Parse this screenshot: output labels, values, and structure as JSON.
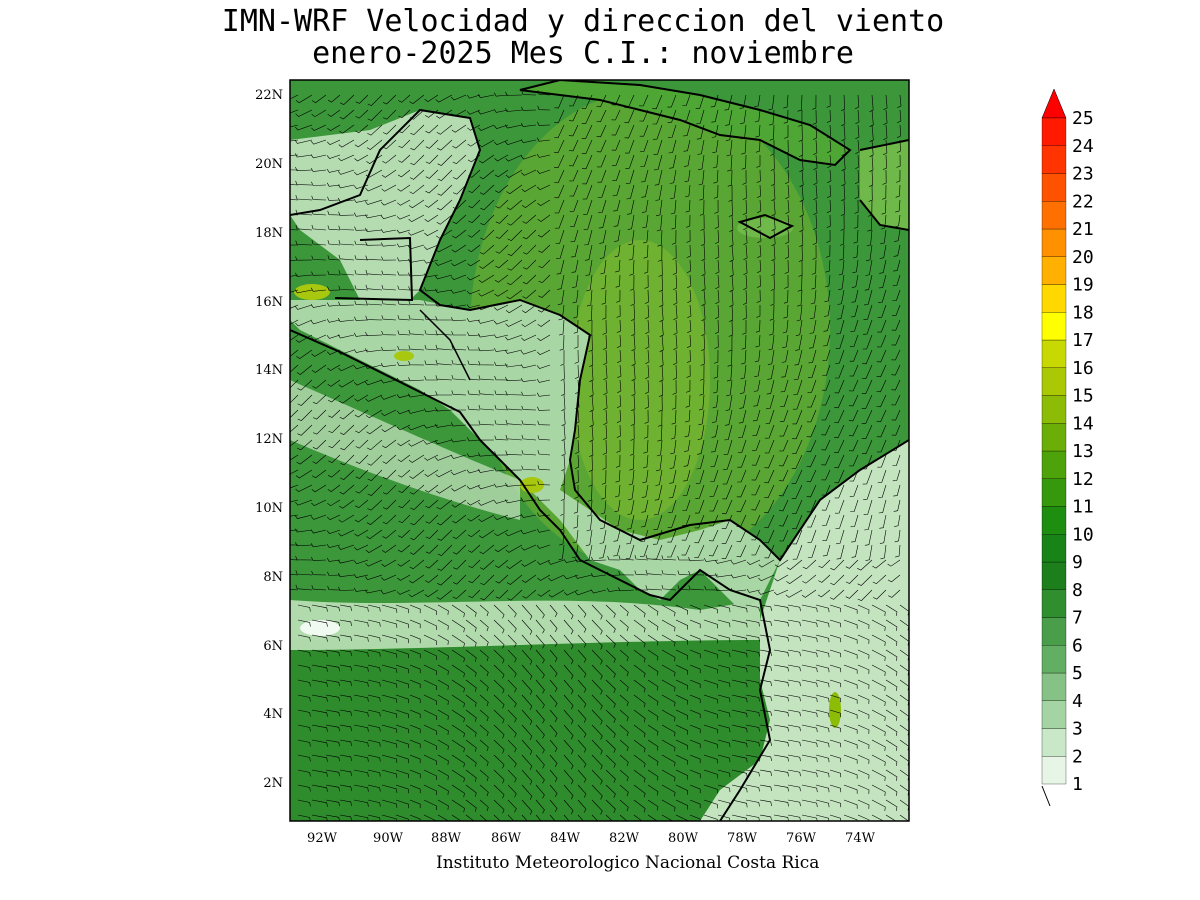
{
  "title_line1": "IMN-WRF Velocidad y direccion del viento",
  "title_line2": "enero-2025 Mes C.I.: noviembre",
  "credit": "Instituto Meteorologico Nacional Costa Rica",
  "lat_labels": [
    "22N",
    "20N",
    "18N",
    "16N",
    "14N",
    "12N",
    "10N",
    "8N",
    "6N",
    "4N",
    "2N"
  ],
  "lon_labels": [
    "92W",
    "90W",
    "88W",
    "86W",
    "84W",
    "82W",
    "80W",
    "78W",
    "76W",
    "74W"
  ],
  "colorbar": {
    "levels": [
      "1",
      "2",
      "3",
      "4",
      "5",
      "6",
      "7",
      "8",
      "9",
      "10",
      "11",
      "12",
      "13",
      "14",
      "15",
      "16",
      "17",
      "18",
      "19",
      "20",
      "21",
      "22",
      "23",
      "24",
      "25"
    ],
    "colors": [
      "#e6f5e6",
      "#c8e8c8",
      "#a4d4a4",
      "#86c286",
      "#62ae62",
      "#4a9e4a",
      "#2f8f2f",
      "#1c7f1c",
      "#188418",
      "#1e8e10",
      "#36980c",
      "#4ea20a",
      "#6cae08",
      "#8cbc06",
      "#aac804",
      "#c8d802",
      "#ffff00",
      "#ffd800",
      "#ffb000",
      "#ff9000",
      "#ff7000",
      "#ff5200",
      "#ff3400",
      "#ff1a00",
      "#ff0000"
    ]
  },
  "colors": {
    "sea": "#2f8f2f",
    "caribbean": "#4a9e3a",
    "land": "#a4d4a4",
    "coast": "#000000"
  }
}
